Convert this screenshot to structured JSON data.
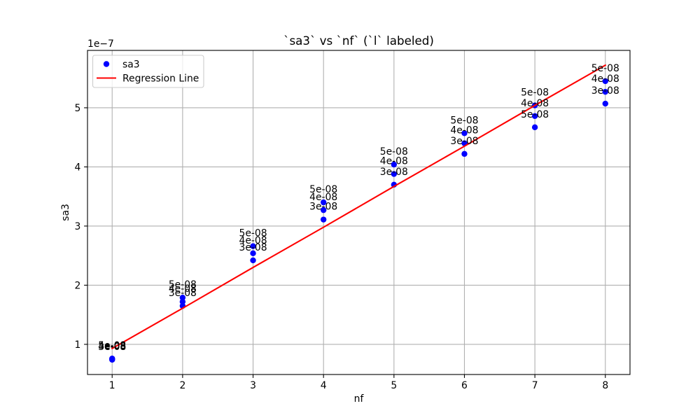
{
  "chart_data": {
    "type": "scatter",
    "title": "`sa3` vs `nf` (`l` labeled)",
    "xlabel": "nf",
    "ylabel": "sa3",
    "y_offset_text": "1e−7",
    "xlim": [
      0.65,
      8.35
    ],
    "ylim": [
      0.49,
      5.97
    ],
    "xticks": [
      1,
      2,
      3,
      4,
      5,
      6,
      7,
      8
    ],
    "xtick_labels": [
      "1",
      "2",
      "3",
      "4",
      "5",
      "6",
      "7",
      "8"
    ],
    "yticks": [
      1,
      2,
      3,
      4,
      5
    ],
    "ytick_labels": [
      "1",
      "2",
      "3",
      "4",
      "5"
    ],
    "grid": true,
    "legend_position": "top-left",
    "series": [
      {
        "name": "sa3",
        "type": "scatter",
        "color": "#0000ff",
        "points": [
          {
            "x": 1,
            "y": 0.76,
            "label": "5e-08"
          },
          {
            "x": 1,
            "y": 0.75,
            "label": "4e-08"
          },
          {
            "x": 1,
            "y": 0.74,
            "label": "3e-08"
          },
          {
            "x": 2,
            "y": 1.79,
            "label": "5e-08"
          },
          {
            "x": 2,
            "y": 1.72,
            "label": "4e-08"
          },
          {
            "x": 2,
            "y": 1.65,
            "label": "3e-08"
          },
          {
            "x": 3,
            "y": 2.66,
            "label": "5e-08"
          },
          {
            "x": 3,
            "y": 2.54,
            "label": "4e-08"
          },
          {
            "x": 3,
            "y": 2.42,
            "label": "3e-08"
          },
          {
            "x": 4,
            "y": 3.4,
            "label": "5e-08"
          },
          {
            "x": 4,
            "y": 3.27,
            "label": "4e-08"
          },
          {
            "x": 4,
            "y": 3.11,
            "label": "3e-08"
          },
          {
            "x": 5,
            "y": 4.04,
            "label": "5e-08"
          },
          {
            "x": 5,
            "y": 3.88,
            "label": "4e-08"
          },
          {
            "x": 5,
            "y": 3.7,
            "label": "3e-08"
          },
          {
            "x": 6,
            "y": 4.57,
            "label": "5e-08"
          },
          {
            "x": 6,
            "y": 4.4,
            "label": "4e-08"
          },
          {
            "x": 6,
            "y": 4.22,
            "label": "3e-08"
          },
          {
            "x": 7,
            "y": 5.04,
            "label": "5e-08"
          },
          {
            "x": 7,
            "y": 4.86,
            "label": "4e-08"
          },
          {
            "x": 7,
            "y": 4.67,
            "label": "5e-08"
          },
          {
            "x": 8,
            "y": 5.45,
            "label": "5e-08"
          },
          {
            "x": 8,
            "y": 5.27,
            "label": "4e-08"
          },
          {
            "x": 8,
            "y": 5.07,
            "label": "3e-08"
          }
        ]
      },
      {
        "name": "Regression Line",
        "type": "line",
        "color": "#ff0000",
        "x": [
          1,
          2,
          3,
          4,
          5,
          6,
          7,
          8
        ],
        "y": [
          0.93,
          1.61,
          2.3,
          2.98,
          3.67,
          4.35,
          5.04,
          5.72
        ]
      }
    ]
  }
}
